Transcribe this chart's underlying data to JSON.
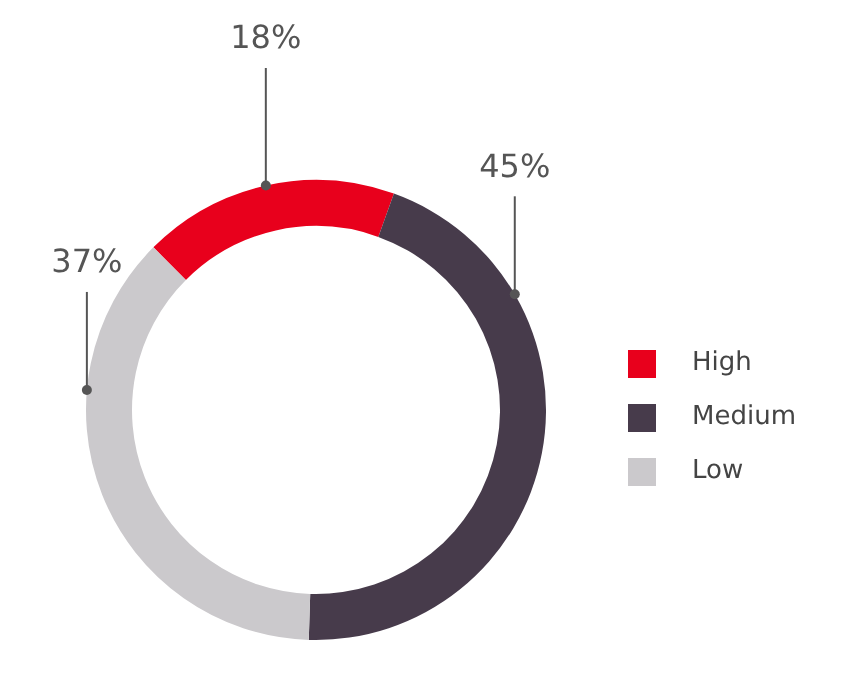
{
  "chart_data": {
    "type": "donut",
    "categories": [
      "High",
      "Medium",
      "Low"
    ],
    "values": [
      18,
      45,
      37
    ],
    "colors": [
      "#e8001c",
      "#473b4b",
      "#cbc9cc"
    ],
    "value_labels": [
      "18%",
      "45%",
      "37%"
    ],
    "legend": "right"
  }
}
